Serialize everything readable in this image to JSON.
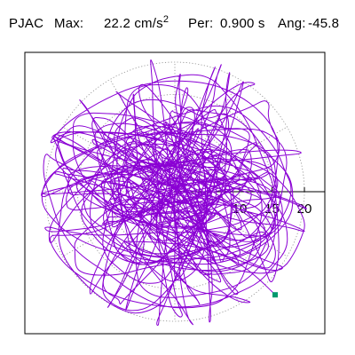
{
  "header": {
    "station": "PJAC",
    "max_label": "Max:",
    "max_value": "22.2 cm/s",
    "max_exponent": "2",
    "per_label": "Per:",
    "per_value": "0.900 s",
    "ang_label": "Ang:",
    "ang_value": "-45.8"
  },
  "chart_data": {
    "type": "scatter",
    "title": "",
    "subtitle": "",
    "projection": "polar",
    "radial_axis": {
      "range": [
        0,
        24
      ],
      "ticks": [
        10,
        15,
        20
      ],
      "tick_labels": [
        "10",
        "15",
        "20"
      ],
      "ring_spacing": 5,
      "ring_count": 4,
      "spoke_spacing_deg": 30
    },
    "grid": true,
    "grid_style": "dotted",
    "legend": "none",
    "trace": {
      "color": "#8a00d4",
      "description": "horizontal acceleration particle motion",
      "extent_abs_max": 21
    },
    "max_point": {
      "color": "#009a6e",
      "magnitude": 22.2,
      "angle_deg": -45.8
    }
  }
}
